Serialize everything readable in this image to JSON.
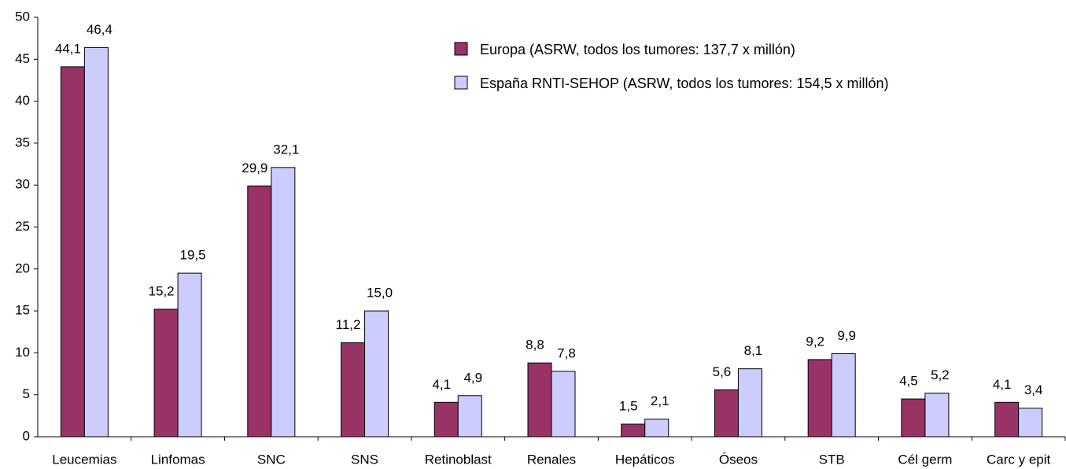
{
  "chart_data": {
    "type": "bar",
    "categories": [
      "Leucemias",
      "Linfomas",
      "SNC",
      "SNS",
      "Retinoblast",
      "Renales",
      "Hepáticos",
      "Óseos",
      "STB",
      "Cél germ",
      "Carc y epit"
    ],
    "series": [
      {
        "name": "Europa (ASRW, todos los tumores: 137,7 x millón)",
        "color": "#993366",
        "values": [
          44.1,
          15.2,
          29.9,
          11.2,
          4.1,
          8.8,
          1.5,
          5.6,
          9.2,
          4.5,
          4.1
        ],
        "value_labels": [
          "44,1",
          "15,2",
          "29,9",
          "11,2",
          "4,1",
          "8,8",
          "1,5",
          "5,6",
          "9,2",
          "4,5",
          "4,1"
        ]
      },
      {
        "name": "España RNTI-SEHOP (ASRW, todos los tumores: 154,5 x millón)",
        "color": "#ccccff",
        "values": [
          46.4,
          19.5,
          32.1,
          15.0,
          4.9,
          7.8,
          2.1,
          8.1,
          9.9,
          5.2,
          3.4
        ],
        "value_labels": [
          "46,4",
          "19,5",
          "32,1",
          "15,0",
          "4,9",
          "7,8",
          "2,1",
          "8,1",
          "9,9",
          "5,2",
          "3,4"
        ]
      }
    ],
    "ylim": [
      0,
      50
    ],
    "yticks": [
      0,
      5,
      10,
      15,
      20,
      25,
      30,
      35,
      40,
      45,
      50
    ],
    "legend": "top-right",
    "grid": false
  }
}
